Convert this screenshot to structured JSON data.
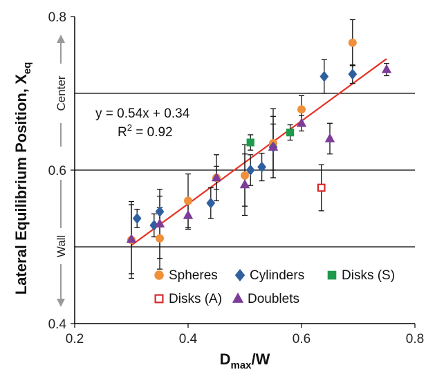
{
  "chart_data": {
    "type": "scatter",
    "xlabel": {
      "main": "D",
      "sub": "max",
      "tail": "/W"
    },
    "ylabel": {
      "main": "Lateral Equilibrium Position, X",
      "sub": "eq"
    },
    "xlim": [
      0.2,
      0.8
    ],
    "ylim": [
      0.4,
      0.8
    ],
    "x_ticks": [
      "0.2",
      "0.4",
      "0.6",
      "0.8"
    ],
    "y_ticks": [
      "0.4",
      "0.6",
      "0.8"
    ],
    "gridlines_y": [
      0.5,
      0.6,
      0.7
    ],
    "fit": {
      "equation": "y = 0.54x + 0.34",
      "r2": {
        "main": "R",
        "sup": "2",
        "tail": " = 0.92"
      },
      "x_range": [
        0.3,
        0.75
      ],
      "slope": 0.54,
      "intercept": 0.34,
      "color": "#e53225"
    },
    "side_labels": {
      "top": "Center",
      "bottom": "Wall"
    },
    "series": [
      {
        "name": "Spheres",
        "marker": "circle",
        "color": "#f0903a",
        "points": [
          {
            "x": 0.3,
            "y": 0.509,
            "err": 0.05
          },
          {
            "x": 0.35,
            "y": 0.511,
            "err": 0.04
          },
          {
            "x": 0.4,
            "y": 0.56,
            "err": 0.035
          },
          {
            "x": 0.45,
            "y": 0.59,
            "err": 0.03
          },
          {
            "x": 0.5,
            "y": 0.593,
            "err": 0.04
          },
          {
            "x": 0.55,
            "y": 0.635,
            "err": 0.045
          },
          {
            "x": 0.6,
            "y": 0.679,
            "err": 0.018
          },
          {
            "x": 0.69,
            "y": 0.766,
            "err": 0.03
          }
        ]
      },
      {
        "name": "Cylinders",
        "marker": "diamond",
        "color": "#2f5f9e",
        "points": [
          {
            "x": 0.31,
            "y": 0.537,
            "err": 0.012
          },
          {
            "x": 0.34,
            "y": 0.528,
            "err": 0.015
          },
          {
            "x": 0.35,
            "y": 0.546,
            "err": 0.02
          },
          {
            "x": 0.44,
            "y": 0.557,
            "err": 0.02
          },
          {
            "x": 0.51,
            "y": 0.6,
            "err": 0.02
          },
          {
            "x": 0.53,
            "y": 0.604,
            "err": 0.018
          },
          {
            "x": 0.55,
            "y": 0.63,
            "err": 0.03
          },
          {
            "x": 0.64,
            "y": 0.722,
            "err": 0.022
          },
          {
            "x": 0.69,
            "y": 0.725,
            "err": 0.012
          }
        ]
      },
      {
        "name": "Disks (S)",
        "marker": "square",
        "color": "#1d9a4b",
        "points": [
          {
            "x": 0.51,
            "y": 0.636,
            "err": 0.01
          },
          {
            "x": 0.58,
            "y": 0.649,
            "err": 0.01
          }
        ]
      },
      {
        "name": "Disks (A)",
        "marker": "open-square",
        "color": "#d42a2a",
        "points": [
          {
            "x": 0.635,
            "y": 0.577,
            "err": 0.03
          }
        ]
      },
      {
        "name": "Doublets",
        "marker": "triangle",
        "color": "#7d3c98",
        "points": [
          {
            "x": 0.3,
            "y": 0.51,
            "err": 0.045
          },
          {
            "x": 0.35,
            "y": 0.53,
            "err": 0.045
          },
          {
            "x": 0.4,
            "y": 0.541,
            "err": 0.018
          },
          {
            "x": 0.45,
            "y": 0.59,
            "err": 0.015
          },
          {
            "x": 0.5,
            "y": 0.581,
            "err": 0.04
          },
          {
            "x": 0.55,
            "y": 0.63,
            "err": 0.04
          },
          {
            "x": 0.6,
            "y": 0.661,
            "err": 0.01
          },
          {
            "x": 0.65,
            "y": 0.641,
            "err": 0.02
          },
          {
            "x": 0.75,
            "y": 0.731,
            "err": 0.008
          }
        ]
      }
    ],
    "legend": {
      "rows": [
        [
          "Spheres",
          "Cylinders",
          "Disks (S)"
        ],
        [
          "Disks (A)",
          "Doublets"
        ]
      ]
    }
  }
}
